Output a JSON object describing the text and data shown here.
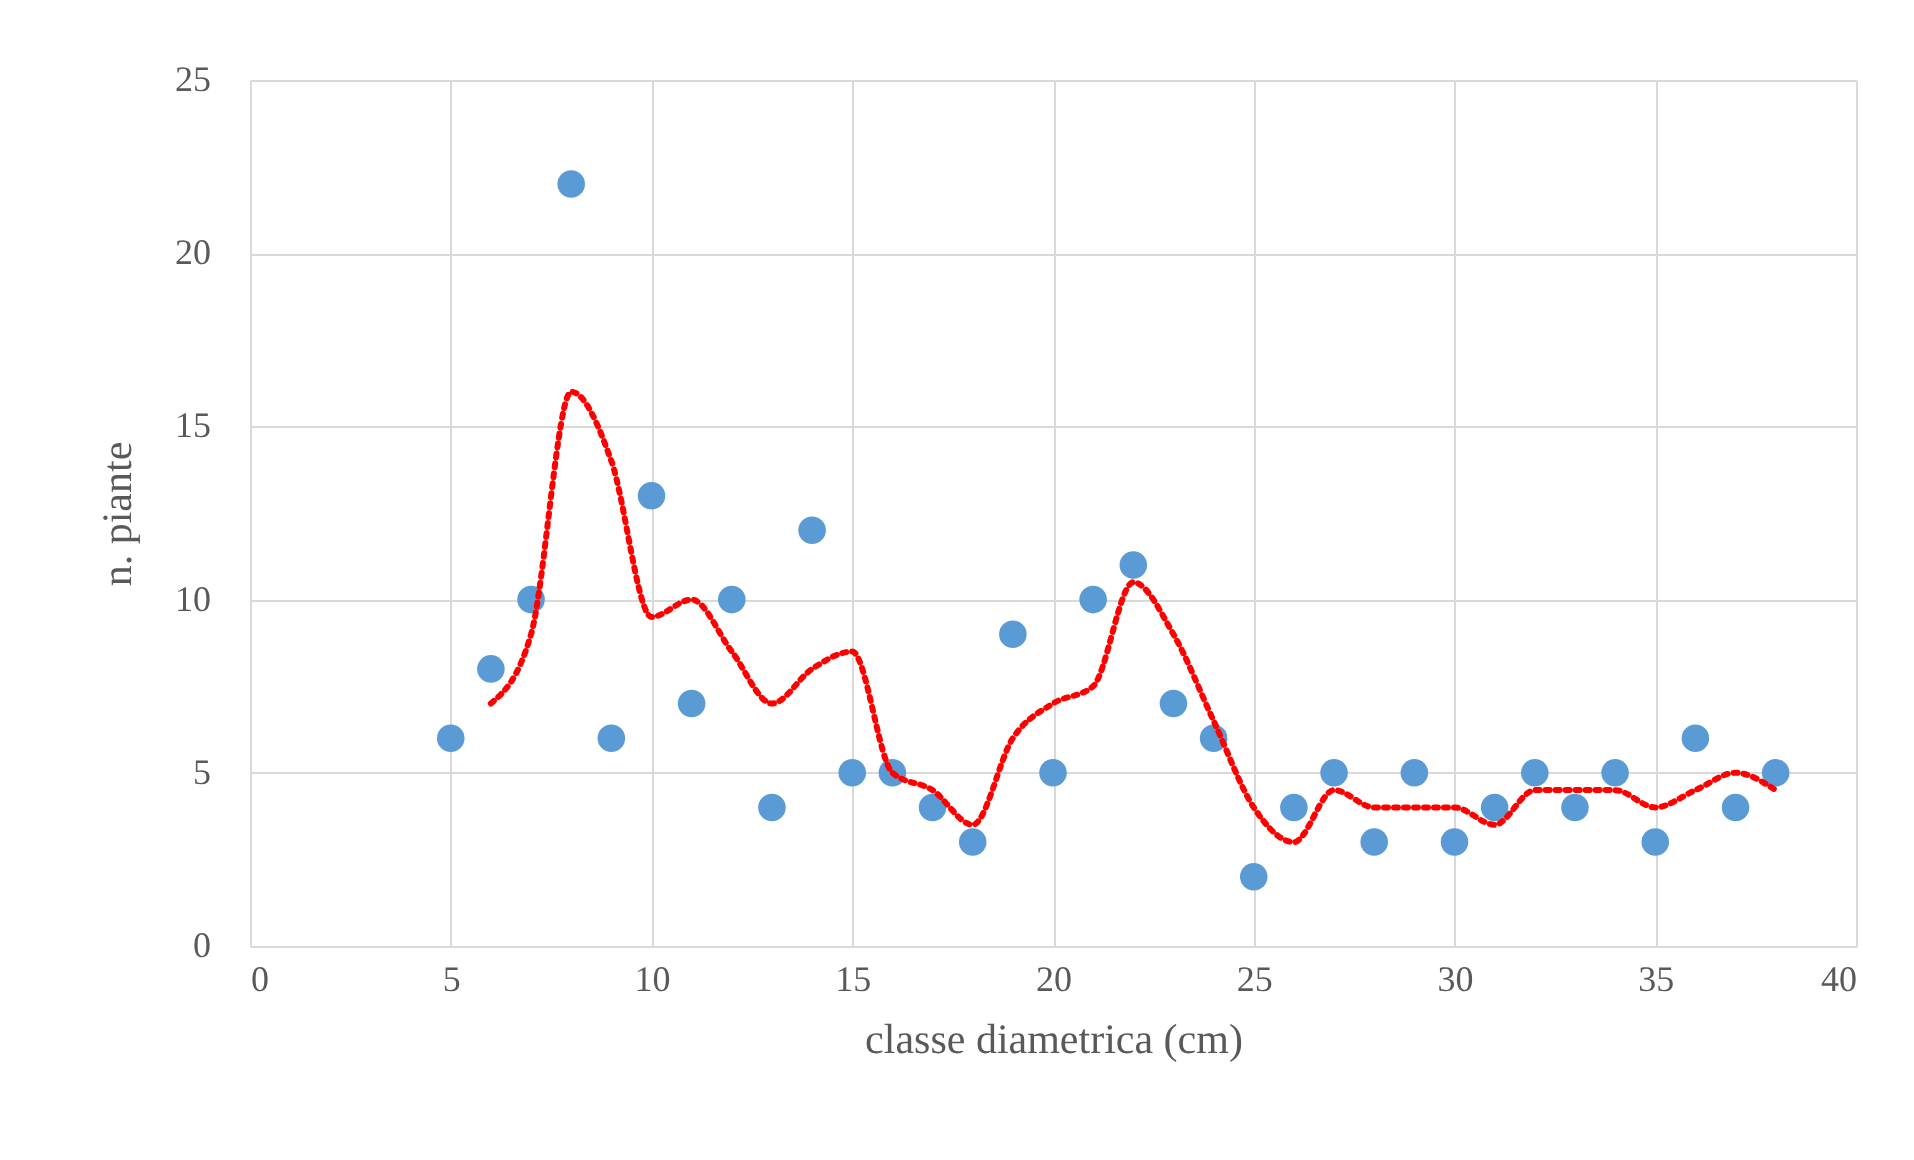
{
  "chart_data": {
    "type": "scatter",
    "xlabel": "classe diametrica (cm)",
    "ylabel": "n. piante",
    "xlim": [
      0,
      40
    ],
    "xticks": [
      0,
      5,
      10,
      15,
      20,
      25,
      30,
      35,
      40
    ],
    "ylim": [
      0,
      25
    ],
    "yticks": [
      0,
      5,
      10,
      15,
      20,
      25
    ],
    "grid": true,
    "series": [
      {
        "type": "scatter",
        "marker": "circle",
        "color": "#5b9bd5",
        "x": [
          5,
          6,
          7,
          8,
          9,
          10,
          11,
          12,
          13,
          14,
          15,
          16,
          17,
          18,
          19,
          20,
          21,
          22,
          23,
          24,
          25,
          26,
          27,
          28,
          29,
          30,
          31,
          32,
          33,
          34,
          35,
          36,
          37,
          38
        ],
        "values": [
          6,
          8,
          10,
          22,
          6,
          13,
          7,
          10,
          4,
          12,
          5,
          5,
          4,
          3,
          9,
          5,
          10,
          11,
          7,
          6,
          2,
          4,
          5,
          3,
          5,
          3,
          4,
          5,
          4,
          5,
          3,
          6,
          4,
          5
        ]
      },
      {
        "type": "line",
        "color": "#ff0000",
        "line_style": "dotted",
        "x": [
          6,
          7,
          8,
          9,
          10,
          11,
          12,
          13,
          14,
          15,
          16,
          17,
          18,
          19,
          20,
          21,
          22,
          23,
          24,
          25,
          26,
          27,
          28,
          29,
          30,
          31,
          32,
          33,
          34,
          35,
          36,
          37,
          38
        ],
        "values": [
          7,
          9,
          16,
          14,
          9.5,
          10,
          8.5,
          7,
          8,
          8.5,
          5,
          4.5,
          3.5,
          6,
          7,
          7.5,
          10.5,
          9,
          6.5,
          4,
          3,
          4.5,
          4,
          4,
          4,
          3.5,
          4.5,
          4.5,
          4.5,
          4,
          4.5,
          5,
          4.5
        ]
      }
    ]
  }
}
